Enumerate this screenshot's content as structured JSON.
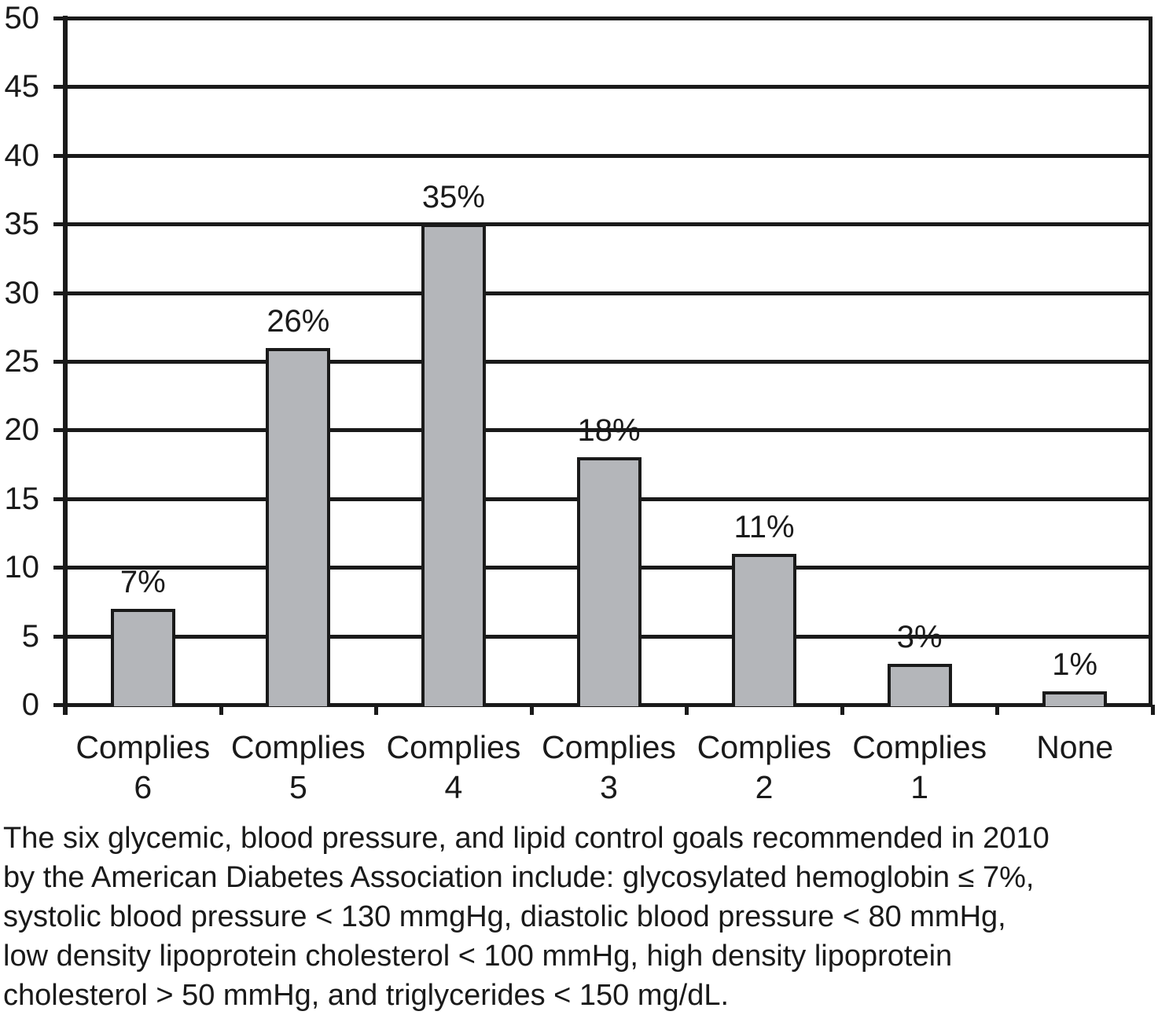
{
  "chart_data": {
    "type": "bar",
    "title": "",
    "categories": [
      "Complies 6",
      "Complies 5",
      "Complies 4",
      "Complies 3",
      "Complies 2",
      "Complies 1",
      "None"
    ],
    "category_label_lines": [
      [
        "Complies",
        "6"
      ],
      [
        "Complies",
        "5"
      ],
      [
        "Complies",
        "4"
      ],
      [
        "Complies",
        "3"
      ],
      [
        "Complies",
        "2"
      ],
      [
        "Complies",
        "1"
      ],
      [
        "None"
      ]
    ],
    "values": [
      7,
      26,
      35,
      18,
      11,
      3,
      1
    ],
    "bar_labels": [
      "7%",
      "26%",
      "35%",
      "18%",
      "11%",
      "3%",
      "1%"
    ],
    "xlabel": "",
    "ylabel": "",
    "ylim": [
      0,
      50
    ],
    "yticks": [
      0,
      5,
      10,
      15,
      20,
      25,
      30,
      35,
      40,
      45,
      50
    ],
    "grid": "horizontal",
    "legend": "none",
    "bar_color": "#b4b6ba",
    "axis_color": "#1a1a1a"
  },
  "caption": {
    "lines": [
      "The six glycemic, blood pressure, and lipid control goals recommended in 2010",
      "by the American Diabetes Association include: glycosylated hemoglobin ≤ 7%,",
      "systolic blood pressure < 130 mmgHg, diastolic blood pressure < 80 mmHg,",
      "low density lipoprotein cholesterol < 100 mmHg, high density lipoprotein",
      "cholesterol > 50 mmHg, and triglycerides < 150 mg/dL."
    ]
  }
}
